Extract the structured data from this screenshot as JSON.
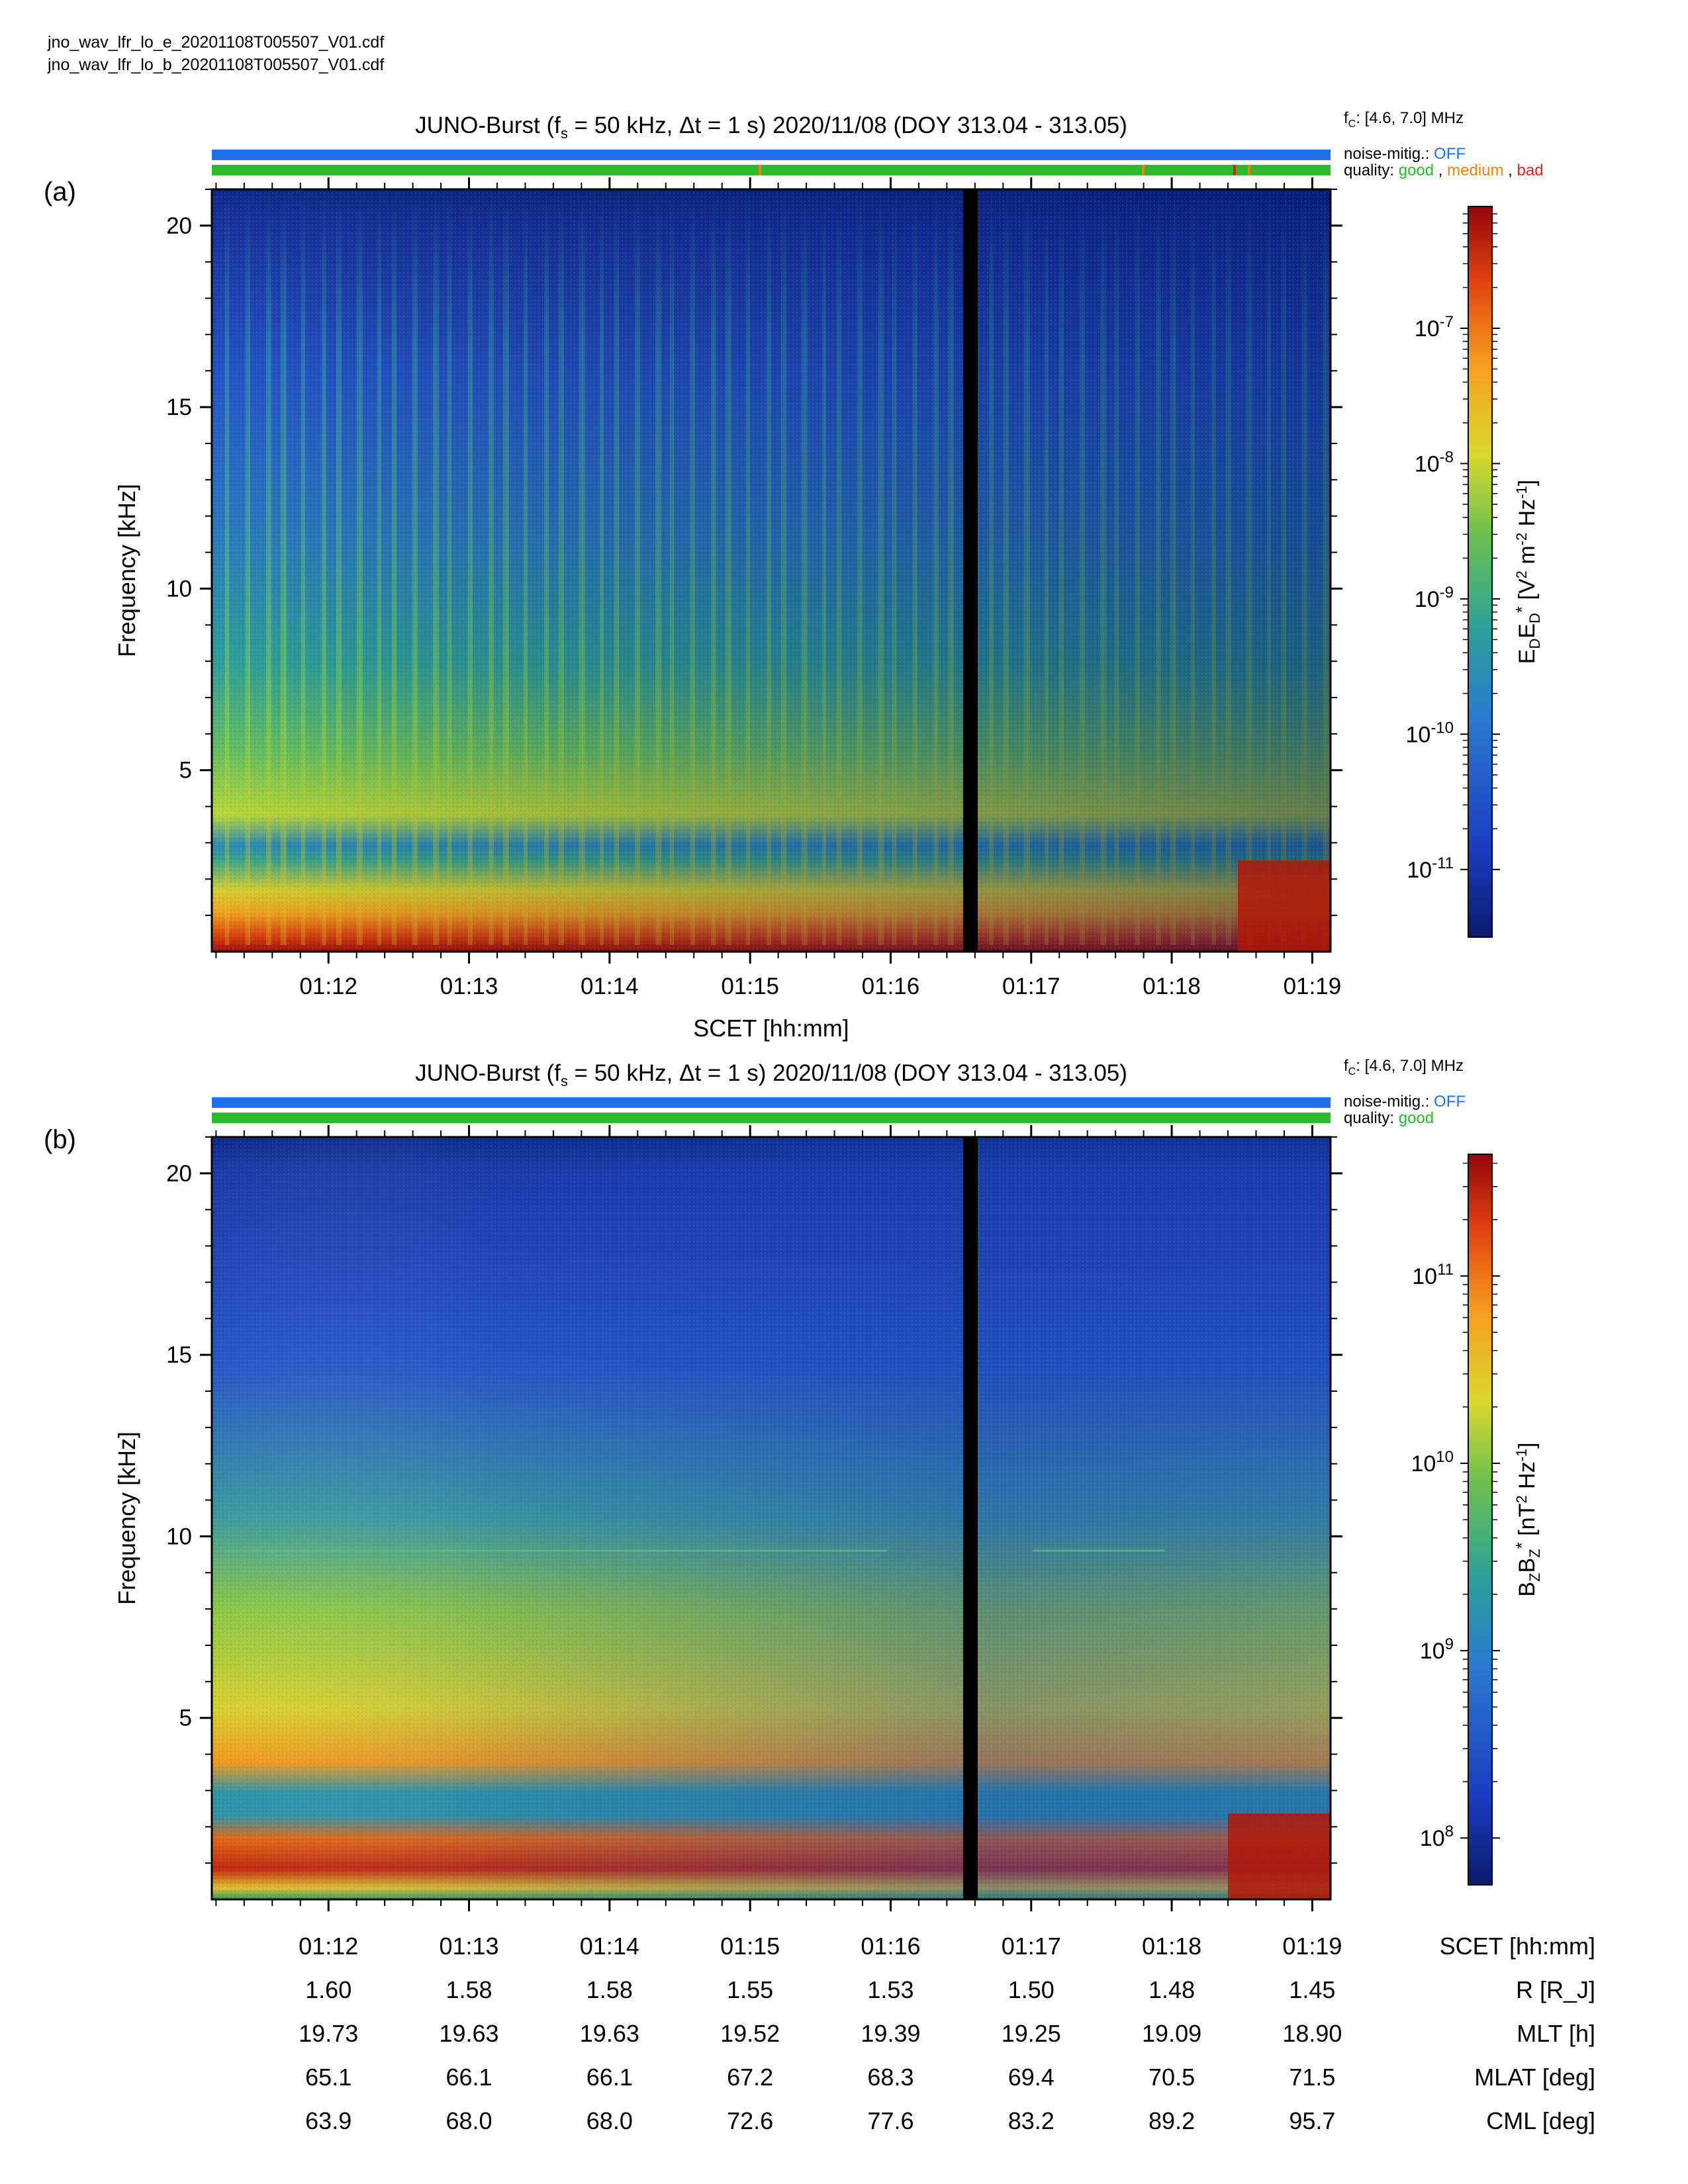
{
  "files": [
    "jno_wav_lfr_lo_e_20201108T005507_V01.cdf",
    "jno_wav_lfr_lo_b_20201108T005507_V01.cdf"
  ],
  "colors": {
    "noise_bar": "#1f6fe6",
    "quality_good": "#2eb82e",
    "quality_medium": "#f08010",
    "quality_bad": "#e02020",
    "data_gap": "#000000"
  },
  "status_legend": {
    "noise_label": "noise-mitig.:",
    "noise_value": "OFF",
    "quality_label": "quality:",
    "good": "good",
    "medium": "medium",
    "bad": "bad",
    "sep": ","
  },
  "chart_data": [
    {
      "type": "heatmap",
      "panel_label": "(a)",
      "title_prefix": "JUNO-Burst (f",
      "title_sub": "s",
      "title_rest": " = 50 kHz, Δt = 1 s)  2020/11/08 (DOY 313.04 - 313.05)",
      "fc_prefix": "f",
      "fc_sub": "C",
      "fc_rest": ": [4.6, 7.0] MHz",
      "quality_legend": [
        "good",
        "medium",
        "bad"
      ],
      "quality_flags": [
        {
          "time_min": 75.05,
          "flag": "medium"
        },
        {
          "time_min": 77.8,
          "flag": "medium"
        },
        {
          "time_min": 78.45,
          "flag": "bad"
        },
        {
          "time_min": 78.55,
          "flag": "medium"
        }
      ],
      "xlabel": "SCET [hh:mm]",
      "ylabel": "Frequency [kHz]",
      "x_ticks": [
        "01:12",
        "01:13",
        "01:14",
        "01:15",
        "01:16",
        "01:17",
        "01:18",
        "01:19"
      ],
      "x_tick_minutes": [
        72,
        73,
        74,
        75,
        76,
        77,
        78,
        79
      ],
      "xlim_minutes": [
        71.17,
        79.13
      ],
      "y_ticks": [
        5,
        10,
        15,
        20
      ],
      "ylim": [
        0,
        21
      ],
      "data_gap_minutes": [
        76.47,
        76.57
      ],
      "colorbar_label": "E_D E_D* [V^2 m^-2 Hz^-1]",
      "colorbar_ticks": [
        "10-11",
        "10-10",
        "10-9",
        "10-8",
        "10-7"
      ],
      "colorbar_exponents": [
        -11,
        -10,
        -9,
        -8,
        -7
      ],
      "colorbar_range_log10": [
        -11.5,
        -6.1
      ],
      "colorbar_scale": "log"
    },
    {
      "type": "heatmap",
      "panel_label": "(b)",
      "title_prefix": "JUNO-Burst (f",
      "title_sub": "s",
      "title_rest": " = 50 kHz, Δt = 1 s)  2020/11/08 (DOY 313.04 - 313.05)",
      "fc_prefix": "f",
      "fc_sub": "C",
      "fc_rest": ": [4.6, 7.0] MHz",
      "quality_legend": [
        "good"
      ],
      "ylabel": "Frequency [kHz]",
      "x_ticks": [
        "01:12",
        "01:13",
        "01:14",
        "01:15",
        "01:16",
        "01:17",
        "01:18",
        "01:19"
      ],
      "x_tick_minutes": [
        72,
        73,
        74,
        75,
        76,
        77,
        78,
        79
      ],
      "xlim_minutes": [
        71.17,
        79.13
      ],
      "y_ticks": [
        5,
        10,
        15,
        20
      ],
      "ylim": [
        0,
        21
      ],
      "data_gap_minutes": [
        76.47,
        76.57
      ],
      "colorbar_label": "B_Z B_Z* [nT^2 Hz^-1]",
      "colorbar_ticks": [
        "10^8",
        "10^9",
        "10^10",
        "10^11"
      ],
      "colorbar_exponents": [
        8,
        9,
        10,
        11
      ],
      "colorbar_range_log10": [
        7.75,
        11.65
      ],
      "colorbar_scale": "log"
    }
  ],
  "ephemeris": {
    "rows": [
      {
        "label": "SCET [hh:mm]",
        "values": [
          "01:12",
          "01:13",
          "01:14",
          "01:15",
          "01:16",
          "01:17",
          "01:18",
          "01:19"
        ]
      },
      {
        "label": "R [R_J]",
        "values": [
          "1.60",
          "1.58",
          "1.58",
          "1.55",
          "1.53",
          "1.50",
          "1.48",
          "1.45"
        ]
      },
      {
        "label": "MLT [h]",
        "values": [
          "19.73",
          "19.63",
          "19.63",
          "19.52",
          "19.39",
          "19.25",
          "19.09",
          "18.90"
        ]
      },
      {
        "label": "MLAT [deg]",
        "values": [
          "65.1",
          "66.1",
          "66.1",
          "67.2",
          "68.3",
          "69.4",
          "70.5",
          "71.5"
        ]
      },
      {
        "label": "CML [deg]",
        "values": [
          "63.9",
          "68.0",
          "68.0",
          "72.6",
          "77.6",
          "83.2",
          "89.2",
          "95.7"
        ]
      }
    ]
  }
}
